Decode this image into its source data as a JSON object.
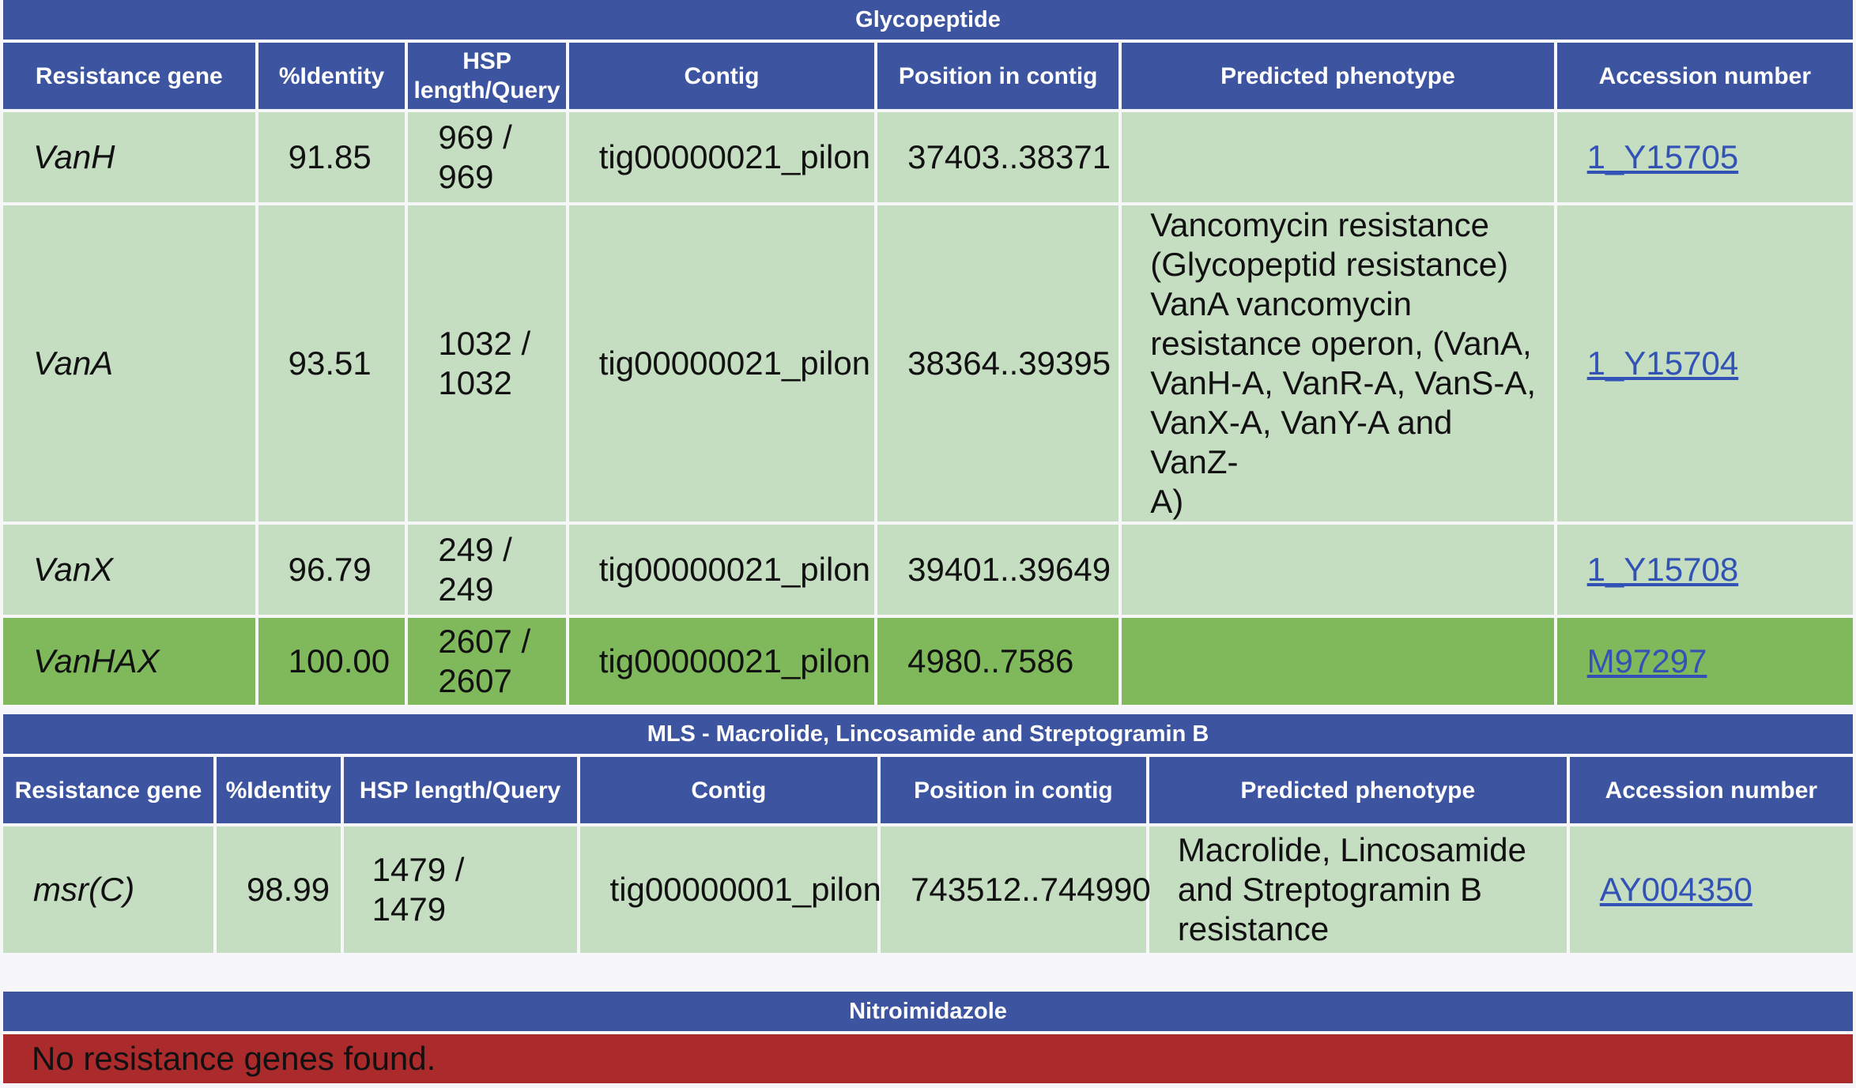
{
  "sections": [
    {
      "title": "Glycopeptide",
      "headers": [
        "Resistance gene",
        "%Identity",
        "HSP length/Query",
        "Contig",
        "Position in contig",
        "Predicted phenotype",
        "Accession number"
      ],
      "rows": [
        {
          "gene": "VanH",
          "identity": "91.85",
          "hsp_a": "969 /",
          "hsp_b": "969",
          "contig": "tig00000021_pilon",
          "position": "37403..38371",
          "phenotype": [],
          "accession": "1_Y15705"
        },
        {
          "gene": "VanA",
          "identity": "93.51",
          "hsp_a": "1032 /",
          "hsp_b": "1032",
          "contig": "tig00000021_pilon",
          "position": "38364..39395",
          "phenotype": [
            "Vancomycin resistance",
            "(Glycopeptid resistance)",
            "VanA vancomycin",
            "resistance operon, (VanA,",
            "VanH-A, VanR-A, VanS-A,",
            "VanX-A, VanY-A and VanZ-",
            "A)"
          ],
          "accession": "1_Y15704"
        },
        {
          "gene": "VanX",
          "identity": "96.79",
          "hsp_a": "249 /",
          "hsp_b": "249",
          "contig": "tig00000021_pilon",
          "position": "39401..39649",
          "phenotype": [],
          "accession": "1_Y15708"
        },
        {
          "gene": "VanHAX",
          "identity": "100.00",
          "hsp_a": "2607 /",
          "hsp_b": "2607",
          "contig": "tig00000021_pilon",
          "position": "4980..7586",
          "phenotype": [],
          "accession": "M97297",
          "highlight": true
        }
      ]
    },
    {
      "title": "MLS - Macrolide, Lincosamide and Streptogramin B",
      "headers": [
        "Resistance gene",
        "%Identity",
        "HSP length/Query",
        "Contig",
        "Position in contig",
        "Predicted phenotype",
        "Accession number"
      ],
      "rows": [
        {
          "gene": "msr(C)",
          "identity": "98.99",
          "hsp_a": "1479 /",
          "hsp_b": "1479",
          "contig": "tig00000001_pilon",
          "position": "743512..744990",
          "phenotype": [
            "Macrolide, Lincosamide",
            "and Streptogramin B",
            "resistance"
          ],
          "accession": "AY004350"
        }
      ]
    },
    {
      "title": "Nitroimidazole",
      "message": "No resistance genes found."
    }
  ],
  "colors": {
    "header_bg": "#3d55a0",
    "row_bg": "#c5ddc1",
    "highlight_bg": "#80b95c",
    "no_result_bg": "#ab2a2c",
    "link": "#3252b6"
  }
}
